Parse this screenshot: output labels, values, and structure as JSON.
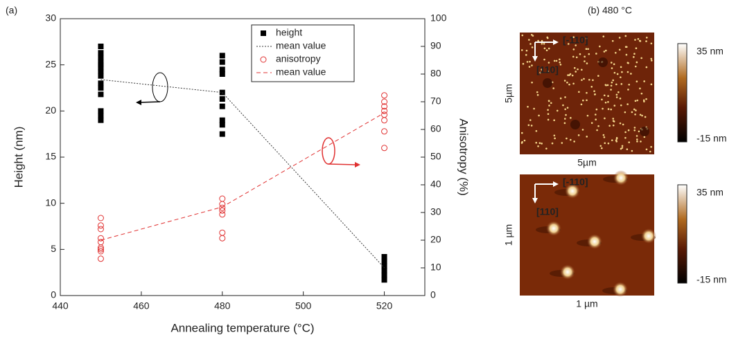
{
  "panel_label": "(a)",
  "chart_data": {
    "type": "scatter",
    "xlabel": "Annealing temperature (°C)",
    "ylabel": "Height (nm)",
    "y2label": "Anisotropy (%)",
    "xlim": [
      440,
      530
    ],
    "xticks": [
      440,
      460,
      480,
      500,
      520
    ],
    "ylim": [
      0,
      30
    ],
    "yticks": [
      0,
      5,
      10,
      15,
      20,
      25,
      30
    ],
    "y2lim": [
      0,
      100
    ],
    "y2ticks": [
      0,
      10,
      20,
      30,
      40,
      50,
      60,
      70,
      80,
      90,
      100
    ],
    "legend": "top-right",
    "series": [
      {
        "name": "height",
        "style": "square",
        "color": "#000000",
        "x": [
          450,
          450,
          450,
          450,
          450,
          450,
          450,
          450,
          450,
          450,
          450,
          450,
          450,
          450,
          480,
          480,
          480,
          480,
          480,
          480,
          480,
          480,
          480,
          480,
          520,
          520,
          520,
          520,
          520,
          520
        ],
        "values": [
          27,
          26.3,
          25.8,
          25.3,
          25,
          24.7,
          24.3,
          23.8,
          23,
          22.5,
          21.8,
          20,
          19.5,
          19,
          26,
          25.3,
          24.5,
          24,
          22,
          21.3,
          20.5,
          19,
          18.5,
          17.5,
          4.2,
          3.7,
          3.2,
          2.7,
          2.2,
          1.7
        ]
      },
      {
        "name": "mean value",
        "style": "dotted",
        "color": "#333333",
        "x": [
          450,
          480,
          520
        ],
        "values": [
          23.4,
          22,
          3
        ]
      },
      {
        "name": "anisotropy",
        "style": "circle",
        "color": "#e03030",
        "axis": "y2",
        "x": [
          450,
          450,
          450,
          450,
          450,
          450,
          450,
          450,
          450,
          480,
          480,
          480,
          480,
          480,
          480,
          480,
          520,
          520,
          520,
          520,
          520,
          520,
          520,
          520
        ],
        "values": [
          28,
          25.3,
          24,
          20.7,
          19.3,
          17.3,
          16.7,
          16,
          13.3,
          35,
          33,
          31.7,
          30.7,
          29.3,
          22.7,
          20.7,
          72.3,
          70,
          68.3,
          66.7,
          65.3,
          63.3,
          59.3,
          53.3
        ]
      },
      {
        "name": "mean value",
        "style": "dashed",
        "color": "#e03030",
        "axis": "y2",
        "x": [
          450,
          480,
          520
        ],
        "values": [
          20,
          32,
          66
        ]
      }
    ]
  },
  "afm": {
    "title": "(b) 480 °C",
    "images": [
      {
        "scale_x": "5µm",
        "scale_y": "5µm",
        "dir1": "[-110]",
        "dir2": "[110]",
        "cbar_max": "35 nm",
        "cbar_min": "-15 nm"
      },
      {
        "scale_x": "1 µm",
        "scale_y": "1 µm",
        "dir1": "[-110]",
        "dir2": "[110]",
        "cbar_max": "35 nm",
        "cbar_min": "-15 nm"
      }
    ]
  }
}
